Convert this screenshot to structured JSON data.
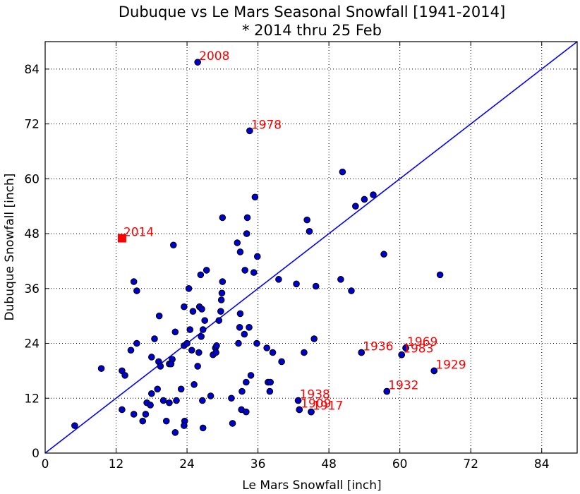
{
  "chart_data": {
    "type": "scatter",
    "title": "Dubuque vs Le Mars Seasonal Snowfall [1941-2014]",
    "subtitle": "* 2014 thru 25 Feb",
    "xlabel": "Le Mars Snowfall [inch]",
    "ylabel": "Dubuque Snowfall [inch]",
    "xlim": [
      0,
      90
    ],
    "ylim": [
      0,
      90
    ],
    "xticks": [
      0,
      12,
      24,
      36,
      48,
      60,
      72,
      84
    ],
    "yticks": [
      0,
      12,
      24,
      36,
      48,
      60,
      72,
      84
    ],
    "grid": true,
    "grid_style": "dotted",
    "point_color": "#0000cc",
    "point_edge_color": "#000000",
    "highlight_color": "#ff0000",
    "line_color": "#0000ff",
    "reference_line": {
      "x": [
        0,
        90
      ],
      "y": [
        0,
        90
      ]
    },
    "points": [
      [
        5,
        6
      ],
      [
        9.5,
        18.5
      ],
      [
        13,
        18
      ],
      [
        13.5,
        17
      ],
      [
        13,
        9.5
      ],
      [
        15,
        8.5
      ],
      [
        14.5,
        22.5
      ],
      [
        15.5,
        24
      ],
      [
        15,
        37.5
      ],
      [
        15.5,
        35.5
      ],
      [
        16.5,
        7
      ],
      [
        17,
        8.5
      ],
      [
        17.2,
        11
      ],
      [
        17.8,
        10.5
      ],
      [
        18,
        13
      ],
      [
        18,
        21
      ],
      [
        18.5,
        25
      ],
      [
        19,
        14
      ],
      [
        19.2,
        20
      ],
      [
        19.5,
        19
      ],
      [
        19.3,
        30
      ],
      [
        20,
        11.5
      ],
      [
        20.5,
        7
      ],
      [
        21,
        19.5
      ],
      [
        21,
        11
      ],
      [
        21.5,
        20.5
      ],
      [
        21.3,
        19.5
      ],
      [
        21.7,
        45.5
      ],
      [
        22,
        4.5
      ],
      [
        22,
        26.5
      ],
      [
        22.2,
        11.5
      ],
      [
        23,
        14
      ],
      [
        23.5,
        23.5
      ],
      [
        23.5,
        32
      ],
      [
        23.6,
        7
      ],
      [
        23.5,
        6
      ],
      [
        24,
        24
      ],
      [
        24.5,
        27
      ],
      [
        24.3,
        36
      ],
      [
        24.8,
        22.5
      ],
      [
        25,
        31
      ],
      [
        25.2,
        15
      ],
      [
        25.8,
        19
      ],
      [
        26,
        22
      ],
      [
        26.1,
        32
      ],
      [
        26.3,
        39
      ],
      [
        26.5,
        31.5
      ],
      [
        26.7,
        27
      ],
      [
        26.4,
        25.5
      ],
      [
        26.6,
        11.5
      ],
      [
        26.7,
        5.5
      ],
      [
        27,
        29
      ],
      [
        27.3,
        40
      ],
      [
        28,
        12.5
      ],
      [
        28.4,
        21.5
      ],
      [
        28.8,
        23
      ],
      [
        29,
        23.5
      ],
      [
        28.9,
        22
      ],
      [
        29.4,
        29
      ],
      [
        29.7,
        31
      ],
      [
        29.8,
        33.5
      ],
      [
        29.9,
        35
      ],
      [
        30,
        37.5
      ],
      [
        30,
        51.5
      ],
      [
        31.5,
        12
      ],
      [
        31.7,
        6.5
      ],
      [
        32.5,
        46
      ],
      [
        32.7,
        24
      ],
      [
        32.9,
        27.5
      ],
      [
        33,
        30.5
      ],
      [
        33,
        44
      ],
      [
        33.2,
        9.5
      ],
      [
        33.3,
        13.5
      ],
      [
        33.7,
        26
      ],
      [
        34,
        9
      ],
      [
        33.8,
        40
      ],
      [
        34.1,
        48
      ],
      [
        34.2,
        51.5
      ],
      [
        34,
        15.5
      ],
      [
        34.5,
        27.5
      ],
      [
        34.8,
        17
      ],
      [
        35.3,
        39.5
      ],
      [
        35.5,
        56
      ],
      [
        35.8,
        24
      ],
      [
        35.9,
        43
      ],
      [
        37.5,
        23
      ],
      [
        37.7,
        15.5
      ],
      [
        38.1,
        15.5
      ],
      [
        38,
        13.5
      ],
      [
        38.5,
        22
      ],
      [
        39.5,
        38
      ],
      [
        40,
        20
      ],
      [
        42.5,
        37
      ],
      [
        42.8,
        11.5
      ],
      [
        43,
        9.5
      ],
      [
        43.8,
        22
      ],
      [
        44.3,
        51
      ],
      [
        44.7,
        48.5
      ],
      [
        45,
        9
      ],
      [
        45.5,
        25
      ],
      [
        45.8,
        36.5
      ],
      [
        50,
        38
      ],
      [
        50.3,
        61.5
      ],
      [
        51.8,
        35.5
      ],
      [
        52.5,
        54
      ],
      [
        54,
        55.5
      ],
      [
        55.5,
        56.5
      ],
      [
        53.5,
        22
      ],
      [
        57.3,
        43.5
      ],
      [
        57.8,
        13.5
      ],
      [
        60.3,
        21.5
      ],
      [
        61,
        23
      ],
      [
        65.8,
        18
      ],
      [
        66.8,
        39
      ]
    ],
    "labeled_points": [
      {
        "label": "2008",
        "x": 25.8,
        "y": 85.5
      },
      {
        "label": "1978",
        "x": 34.6,
        "y": 70.5
      },
      {
        "label": "1936",
        "x": 53.5,
        "y": 22
      },
      {
        "label": "1969",
        "x": 61,
        "y": 23
      },
      {
        "label": "1983",
        "x": 60.3,
        "y": 21.5
      },
      {
        "label": "1929",
        "x": 65.8,
        "y": 18
      },
      {
        "label": "1932",
        "x": 57.8,
        "y": 13.5
      },
      {
        "label": "1938",
        "x": 42.8,
        "y": 11.5
      },
      {
        "label": "1909",
        "x": 43,
        "y": 9.5
      },
      {
        "label": "1917",
        "x": 45,
        "y": 9
      }
    ],
    "highlight": {
      "label": "2014",
      "x": 13,
      "y": 47,
      "marker": "square"
    }
  }
}
